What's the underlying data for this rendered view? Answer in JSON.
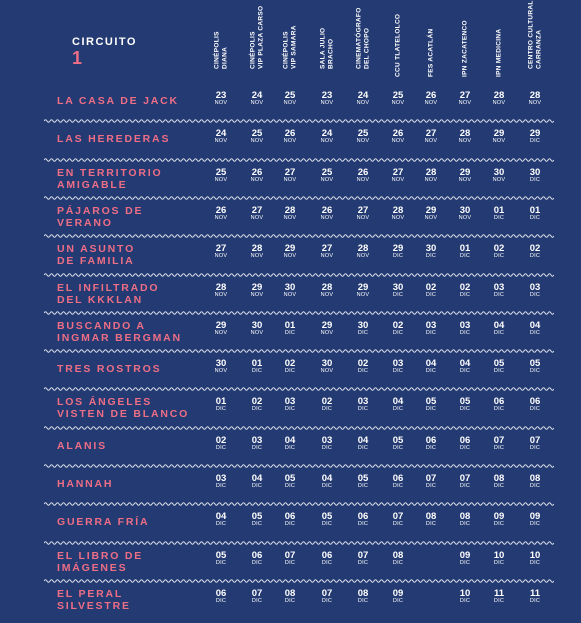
{
  "circuito": {
    "label": "CIRCUITO",
    "number": "1"
  },
  "venues": [
    [
      "CINÉPOLIS",
      "DIANA"
    ],
    [
      "CINÉPOLIS",
      "VIP PLAZA CARSO"
    ],
    [
      "CINÉPOLIS",
      "VIP SAMARA"
    ],
    [
      "SALA JULIO",
      "BRACHO"
    ],
    [
      "CINEMATÓGRAFO",
      "DEL CHOPO"
    ],
    [
      "CCU TLATELOLCO"
    ],
    [
      "FES ACATLÁN"
    ],
    [
      "IPN ZACATENCO"
    ],
    [
      "IPN MEDICINA"
    ],
    [
      "CENTRO CULTURAL",
      "CARRANZA"
    ]
  ],
  "films": [
    {
      "title": [
        "LA CASA DE JACK"
      ],
      "dates": [
        [
          "23",
          "NOV"
        ],
        [
          "24",
          "NOV"
        ],
        [
          "25",
          "NOV"
        ],
        [
          "23",
          "NOV"
        ],
        [
          "24",
          "NOV"
        ],
        [
          "25",
          "NOV"
        ],
        [
          "26",
          "NOV"
        ],
        [
          "27",
          "NOV"
        ],
        [
          "28",
          "NOV"
        ],
        [
          "28",
          "NOV"
        ]
      ]
    },
    {
      "title": [
        "LAS HEREDERAS"
      ],
      "dates": [
        [
          "24",
          "NOV"
        ],
        [
          "25",
          "NOV"
        ],
        [
          "26",
          "NOV"
        ],
        [
          "24",
          "NOV"
        ],
        [
          "25",
          "NOV"
        ],
        [
          "26",
          "NOV"
        ],
        [
          "27",
          "NOV"
        ],
        [
          "28",
          "NOV"
        ],
        [
          "29",
          "NOV"
        ],
        [
          "29",
          "DIC"
        ]
      ]
    },
    {
      "title": [
        "EN TERRITORIO",
        "AMIGABLE"
      ],
      "dates": [
        [
          "25",
          "NOV"
        ],
        [
          "26",
          "NOV"
        ],
        [
          "27",
          "NOV"
        ],
        [
          "25",
          "NOV"
        ],
        [
          "26",
          "NOV"
        ],
        [
          "27",
          "NOV"
        ],
        [
          "28",
          "NOV"
        ],
        [
          "29",
          "NOV"
        ],
        [
          "30",
          "NOV"
        ],
        [
          "30",
          "DIC"
        ]
      ]
    },
    {
      "title": [
        "PÁJAROS DE",
        "VERANO"
      ],
      "dates": [
        [
          "26",
          "NOV"
        ],
        [
          "27",
          "NOV"
        ],
        [
          "28",
          "NOV"
        ],
        [
          "26",
          "NOV"
        ],
        [
          "27",
          "NOV"
        ],
        [
          "28",
          "NOV"
        ],
        [
          "29",
          "NOV"
        ],
        [
          "30",
          "NOV"
        ],
        [
          "01",
          "DIC"
        ],
        [
          "01",
          "DIC"
        ]
      ]
    },
    {
      "title": [
        "UN ASUNTO",
        "DE FAMILIA"
      ],
      "dates": [
        [
          "27",
          "NOV"
        ],
        [
          "28",
          "NOV"
        ],
        [
          "29",
          "NOV"
        ],
        [
          "27",
          "NOV"
        ],
        [
          "28",
          "NOV"
        ],
        [
          "29",
          "DIC"
        ],
        [
          "30",
          "DIC"
        ],
        [
          "01",
          "DIC"
        ],
        [
          "02",
          "DIC"
        ],
        [
          "02",
          "DIC"
        ]
      ]
    },
    {
      "title": [
        "EL INFILTRADO",
        "DEL KKKLAN"
      ],
      "dates": [
        [
          "28",
          "NOV"
        ],
        [
          "29",
          "NOV"
        ],
        [
          "30",
          "NOV"
        ],
        [
          "28",
          "NOV"
        ],
        [
          "29",
          "NOV"
        ],
        [
          "30",
          "DIC"
        ],
        [
          "02",
          "DIC"
        ],
        [
          "02",
          "DIC"
        ],
        [
          "03",
          "DIC"
        ],
        [
          "03",
          "DIC"
        ]
      ]
    },
    {
      "title": [
        "BUSCANDO A",
        "INGMAR BERGMAN"
      ],
      "dates": [
        [
          "29",
          "NOV"
        ],
        [
          "30",
          "NOV"
        ],
        [
          "01",
          "DIC"
        ],
        [
          "29",
          "NOV"
        ],
        [
          "30",
          "DIC"
        ],
        [
          "02",
          "DIC"
        ],
        [
          "03",
          "DIC"
        ],
        [
          "03",
          "DIC"
        ],
        [
          "04",
          "DIC"
        ],
        [
          "04",
          "DIC"
        ]
      ]
    },
    {
      "title": [
        "TRES ROSTROS"
      ],
      "dates": [
        [
          "30",
          "NOV"
        ],
        [
          "01",
          "DIC"
        ],
        [
          "02",
          "DIC"
        ],
        [
          "30",
          "NOV"
        ],
        [
          "02",
          "DIC"
        ],
        [
          "03",
          "DIC"
        ],
        [
          "04",
          "DIC"
        ],
        [
          "04",
          "DIC"
        ],
        [
          "05",
          "DIC"
        ],
        [
          "05",
          "DIC"
        ]
      ]
    },
    {
      "title": [
        "LOS ÁNGELES",
        "VISTEN DE BLANCO"
      ],
      "dates": [
        [
          "01",
          "DIC"
        ],
        [
          "02",
          "DIC"
        ],
        [
          "03",
          "DIC"
        ],
        [
          "02",
          "DIC"
        ],
        [
          "03",
          "DIC"
        ],
        [
          "04",
          "DIC"
        ],
        [
          "05",
          "DIC"
        ],
        [
          "05",
          "DIC"
        ],
        [
          "06",
          "DIC"
        ],
        [
          "06",
          "DIC"
        ]
      ]
    },
    {
      "title": [
        "ALANIS"
      ],
      "dates": [
        [
          "02",
          "DIC"
        ],
        [
          "03",
          "DIC"
        ],
        [
          "04",
          "DIC"
        ],
        [
          "03",
          "DIC"
        ],
        [
          "04",
          "DIC"
        ],
        [
          "05",
          "DIC"
        ],
        [
          "06",
          "DIC"
        ],
        [
          "06",
          "DIC"
        ],
        [
          "07",
          "DIC"
        ],
        [
          "07",
          "DIC"
        ]
      ]
    },
    {
      "title": [
        "HANNAH"
      ],
      "dates": [
        [
          "03",
          "DIC"
        ],
        [
          "04",
          "DIC"
        ],
        [
          "05",
          "DIC"
        ],
        [
          "04",
          "DIC"
        ],
        [
          "05",
          "DIC"
        ],
        [
          "06",
          "DIC"
        ],
        [
          "07",
          "DIC"
        ],
        [
          "07",
          "DIC"
        ],
        [
          "08",
          "DIC"
        ],
        [
          "08",
          "DIC"
        ]
      ]
    },
    {
      "title": [
        "GUERRA FRÍA"
      ],
      "dates": [
        [
          "04",
          "DIC"
        ],
        [
          "05",
          "DIC"
        ],
        [
          "06",
          "DIC"
        ],
        [
          "05",
          "DIC"
        ],
        [
          "06",
          "DIC"
        ],
        [
          "07",
          "DIC"
        ],
        [
          "08",
          "DIC"
        ],
        [
          "08",
          "DIC"
        ],
        [
          "09",
          "DIC"
        ],
        [
          "09",
          "DIC"
        ]
      ]
    },
    {
      "title": [
        "EL LIBRO DE",
        "IMÁGENES"
      ],
      "dates": [
        [
          "05",
          "DIC"
        ],
        [
          "06",
          "DIC"
        ],
        [
          "07",
          "DIC"
        ],
        [
          "06",
          "DIC"
        ],
        [
          "07",
          "DIC"
        ],
        [
          "08",
          "DIC"
        ],
        null,
        [
          "09",
          "DIC"
        ],
        [
          "10",
          "DIC"
        ],
        [
          "10",
          "DIC"
        ]
      ]
    },
    {
      "title": [
        "EL PERAL",
        "SILVESTRE"
      ],
      "dates": [
        [
          "06",
          "DIC"
        ],
        [
          "07",
          "DIC"
        ],
        [
          "08",
          "DIC"
        ],
        [
          "07",
          "DIC"
        ],
        [
          "08",
          "DIC"
        ],
        [
          "09",
          "DIC"
        ],
        null,
        [
          "10",
          "DIC"
        ],
        [
          "11",
          "DIC"
        ],
        [
          "11",
          "DIC"
        ]
      ]
    }
  ],
  "colors": {
    "background": "#243a72",
    "accent": "#ee6e86",
    "text": "#ffffff"
  }
}
